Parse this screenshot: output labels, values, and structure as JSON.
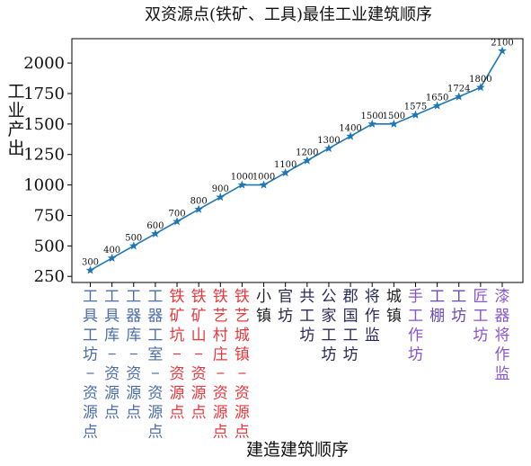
{
  "chart_data": {
    "type": "line",
    "title": "双资源点(铁矿、工具)最佳工业建筑顺序",
    "xlabel": "建造建筑顺序",
    "ylabel": "工业产出",
    "ylim": [
      200,
      2200
    ],
    "yticks": [
      250,
      500,
      750,
      1000,
      1250,
      1500,
      1750,
      2000
    ],
    "grid": false,
    "line_color": "#1f77b4",
    "marker": "star",
    "categories": [
      {
        "label": "工具工坊-资源点",
        "color": "#4c6ea8"
      },
      {
        "label": "工具库-资源点",
        "color": "#4c6ea8"
      },
      {
        "label": "工器库-资源点",
        "color": "#4c6ea8"
      },
      {
        "label": "工器工室-资源点",
        "color": "#4c6ea8"
      },
      {
        "label": "铁矿坑-资源点",
        "color": "#e8383d"
      },
      {
        "label": "铁矿山-资源点",
        "color": "#e8383d"
      },
      {
        "label": "铁艺村庄-资源点",
        "color": "#e8383d"
      },
      {
        "label": "铁艺城镇-资源点",
        "color": "#e8383d"
      },
      {
        "label": "小镇",
        "color": "#222222"
      },
      {
        "label": "官坊",
        "color": "#2a2a4a"
      },
      {
        "label": "共工坊",
        "color": "#2a2a5a"
      },
      {
        "label": "公家工坊",
        "color": "#2a2a5a"
      },
      {
        "label": "郡国工坊",
        "color": "#2a2a5a"
      },
      {
        "label": "将作监",
        "color": "#2a2a5a"
      },
      {
        "label": "城镇",
        "color": "#222222"
      },
      {
        "label": "手工作坊",
        "color": "#8a55cc"
      },
      {
        "label": "工棚",
        "color": "#6a4bb0"
      },
      {
        "label": "工坊",
        "color": "#6a4bb0"
      },
      {
        "label": "匠工坊",
        "color": "#8a55cc"
      },
      {
        "label": "漆器将作监",
        "color": "#8a55cc"
      }
    ],
    "values": [
      300,
      400,
      500,
      600,
      700,
      800,
      900,
      1000,
      1000,
      1100,
      1200,
      1300,
      1400,
      1500,
      1500,
      1575,
      1650,
      1724,
      1800,
      2100
    ]
  }
}
